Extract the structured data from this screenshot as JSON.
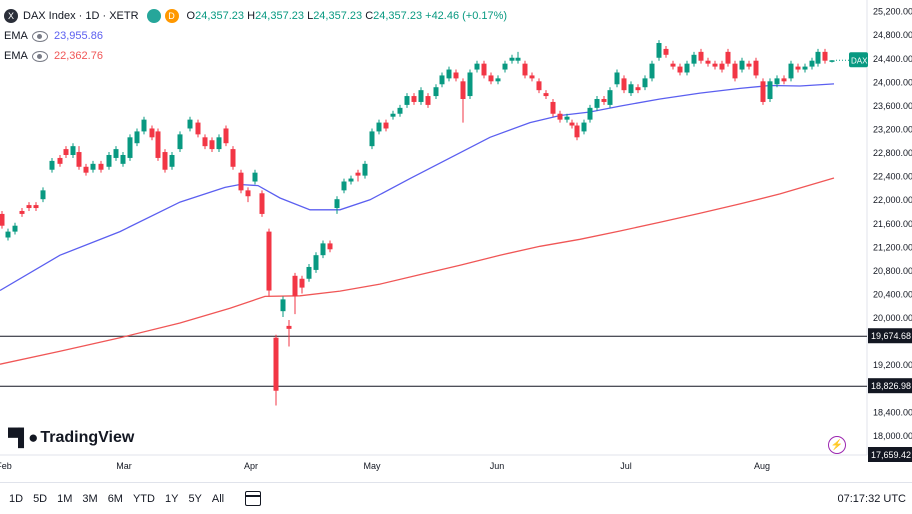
{
  "legend": {
    "symbol_icon": "X",
    "title": "DAX Index · 1D · XETR",
    "d_badge": "D",
    "ohlc": {
      "o_key": "O",
      "o": "24,357.23",
      "h_key": "H",
      "h": "24,357.23",
      "l_key": "L",
      "l": "24,357.23",
      "c_key": "C",
      "c": "24,357.23",
      "chg": "+42.46 (+0.17%)"
    },
    "ema1": {
      "label": "EMA",
      "value": "23,955.86",
      "color": "#5b5ff0"
    },
    "ema2": {
      "label": "EMA",
      "value": "22,362.76",
      "color": "#f05656"
    }
  },
  "chart_data": {
    "type": "candlestick",
    "y_ticks": [
      "25,200.00",
      "24,800.00",
      "24,400.00",
      "24,000.00",
      "23,600.00",
      "23,200.00",
      "22,800.00",
      "22,400.00",
      "22,000.00",
      "21,600.00",
      "21,200.00",
      "20,800.00",
      "20,400.00",
      "20,000.00",
      "19,200.00",
      "18,400.00",
      "18,000.00"
    ],
    "x_ticks": [
      "Feb",
      "Mar",
      "Apr",
      "May",
      "Jun",
      "Jul",
      "Aug"
    ],
    "ylim": [
      17659.42,
      25380
    ],
    "up_color": "#089981",
    "down_color": "#f23645",
    "price_tag": {
      "label": "DAX",
      "value": 24357.23,
      "color": "#089981"
    },
    "hlines": [
      {
        "value": 19674.68,
        "label": "19,674.68"
      },
      {
        "value": 18826.98,
        "label": "18,826.98"
      }
    ],
    "bottom_tag": {
      "value": 17659.42,
      "label": "17,659.42"
    },
    "ema_fast": {
      "color": "#5b5ff0",
      "points": [
        [
          0,
          20450
        ],
        [
          60,
          21050
        ],
        [
          120,
          21450
        ],
        [
          180,
          21950
        ],
        [
          225,
          22200
        ],
        [
          240,
          22250
        ],
        [
          258,
          22230
        ],
        [
          280,
          22020
        ],
        [
          310,
          21820
        ],
        [
          340,
          21820
        ],
        [
          370,
          21990
        ],
        [
          410,
          22350
        ],
        [
          450,
          22700
        ],
        [
          490,
          23050
        ],
        [
          530,
          23300
        ],
        [
          560,
          23420
        ],
        [
          590,
          23480
        ],
        [
          620,
          23580
        ],
        [
          660,
          23700
        ],
        [
          700,
          23800
        ],
        [
          740,
          23880
        ],
        [
          770,
          23930
        ],
        [
          800,
          23920
        ],
        [
          834,
          23956
        ]
      ]
    },
    "ema_slow": {
      "color": "#f05656",
      "points": [
        [
          0,
          19200
        ],
        [
          60,
          19420
        ],
        [
          120,
          19650
        ],
        [
          180,
          19900
        ],
        [
          230,
          20150
        ],
        [
          265,
          20350
        ],
        [
          300,
          20360
        ],
        [
          340,
          20440
        ],
        [
          380,
          20560
        ],
        [
          420,
          20720
        ],
        [
          460,
          20880
        ],
        [
          500,
          21050
        ],
        [
          540,
          21200
        ],
        [
          580,
          21320
        ],
        [
          620,
          21460
        ],
        [
          660,
          21610
        ],
        [
          700,
          21760
        ],
        [
          740,
          21920
        ],
        [
          780,
          22090
        ],
        [
          834,
          22360
        ]
      ]
    },
    "candles": [
      [
        2,
        21750,
        21550,
        21800,
        21500
      ],
      [
        8,
        21350,
        21450,
        21500,
        21300
      ],
      [
        15,
        21450,
        21550,
        21600,
        21400
      ],
      [
        22,
        21800,
        21750,
        21850,
        21700
      ],
      [
        29,
        21900,
        21850,
        21950,
        21800
      ],
      [
        36,
        21900,
        21850,
        21950,
        21800
      ],
      [
        43,
        22000,
        22150,
        22200,
        21950
      ],
      [
        52,
        22500,
        22650,
        22700,
        22450
      ],
      [
        60,
        22700,
        22600,
        22750,
        22550
      ],
      [
        66,
        22850,
        22750,
        22900,
        22700
      ],
      [
        73,
        22750,
        22900,
        22950,
        22700
      ],
      [
        79,
        22800,
        22550,
        22900,
        22500
      ],
      [
        86,
        22550,
        22450,
        22600,
        22400
      ],
      [
        93,
        22500,
        22600,
        22650,
        22450
      ],
      [
        101,
        22600,
        22500,
        22650,
        22450
      ],
      [
        109,
        22550,
        22750,
        22800,
        22500
      ],
      [
        116,
        22700,
        22850,
        22900,
        22650
      ],
      [
        123,
        22600,
        22750,
        22800,
        22550
      ],
      [
        130,
        22700,
        23050,
        23100,
        22650
      ],
      [
        137,
        22950,
        23150,
        23200,
        22900
      ],
      [
        144,
        23150,
        23350,
        23400,
        23100
      ],
      [
        152,
        23200,
        23050,
        23250,
        23000
      ],
      [
        158,
        23150,
        22700,
        23200,
        22650
      ],
      [
        165,
        22800,
        22500,
        22850,
        22450
      ],
      [
        172,
        22550,
        22750,
        22800,
        22500
      ],
      [
        180,
        22850,
        23100,
        23150,
        22800
      ],
      [
        190,
        23200,
        23350,
        23400,
        23150
      ],
      [
        198,
        23300,
        23100,
        23350,
        23050
      ],
      [
        205,
        23050,
        22900,
        23100,
        22850
      ],
      [
        212,
        23000,
        22850,
        23050,
        22800
      ],
      [
        219,
        22850,
        23050,
        23100,
        22800
      ],
      [
        226,
        23200,
        22950,
        23250,
        22900
      ],
      [
        233,
        22850,
        22550,
        22900,
        22500
      ],
      [
        241,
        22450,
        22150,
        22500,
        22100
      ],
      [
        248,
        22150,
        22050,
        22200,
        21950
      ],
      [
        255,
        22300,
        22450,
        22500,
        22250
      ],
      [
        262,
        22100,
        21750,
        22150,
        21700
      ],
      [
        269,
        21450,
        20450,
        21500,
        20350
      ],
      [
        276,
        19650,
        18750,
        19700,
        18500
      ],
      [
        283,
        20100,
        20300,
        20350,
        20000
      ],
      [
        289,
        19850,
        19800,
        19950,
        19500
      ],
      [
        295,
        20700,
        20350,
        20750,
        20050
      ],
      [
        302,
        20650,
        20500,
        20700,
        20400
      ],
      [
        309,
        20650,
        20850,
        20900,
        20600
      ],
      [
        316,
        20800,
        21050,
        21100,
        20750
      ],
      [
        323,
        21050,
        21250,
        21300,
        21000
      ],
      [
        330,
        21250,
        21150,
        21300,
        21100
      ],
      [
        337,
        21850,
        22000,
        22050,
        21750
      ],
      [
        344,
        22150,
        22300,
        22350,
        22100
      ],
      [
        351,
        22300,
        22350,
        22400,
        22250
      ],
      [
        358,
        22450,
        22400,
        22500,
        22300
      ],
      [
        365,
        22400,
        22600,
        22650,
        22350
      ],
      [
        372,
        22900,
        23150,
        23200,
        22850
      ],
      [
        379,
        23150,
        23300,
        23350,
        23100
      ],
      [
        386,
        23300,
        23200,
        23350,
        23150
      ],
      [
        393,
        23400,
        23450,
        23500,
        23350
      ],
      [
        400,
        23450,
        23550,
        23600,
        23400
      ],
      [
        407,
        23600,
        23750,
        23800,
        23550
      ],
      [
        414,
        23750,
        23650,
        23800,
        23600
      ],
      [
        421,
        23650,
        23850,
        23900,
        23600
      ],
      [
        428,
        23750,
        23600,
        23800,
        23550
      ],
      [
        436,
        23750,
        23900,
        23950,
        23700
      ],
      [
        442,
        23950,
        24100,
        24150,
        23900
      ],
      [
        449,
        24050,
        24200,
        24250,
        24000
      ],
      [
        456,
        24150,
        24050,
        24200,
        24000
      ],
      [
        463,
        24000,
        23700,
        24050,
        23300
      ],
      [
        470,
        23750,
        24150,
        24200,
        23700
      ],
      [
        477,
        24200,
        24300,
        24350,
        24150
      ],
      [
        484,
        24300,
        24100,
        24350,
        24050
      ],
      [
        491,
        24100,
        24000,
        24150,
        23950
      ],
      [
        498,
        24000,
        24050,
        24100,
        23950
      ],
      [
        505,
        24200,
        24300,
        24350,
        24150
      ],
      [
        512,
        24350,
        24400,
        24450,
        24300
      ],
      [
        518,
        24350,
        24400,
        24500,
        24300
      ],
      [
        525,
        24300,
        24100,
        24350,
        24050
      ],
      [
        532,
        24100,
        24050,
        24150,
        24000
      ],
      [
        539,
        24000,
        23850,
        24050,
        23800
      ],
      [
        546,
        23800,
        23750,
        23850,
        23700
      ],
      [
        553,
        23650,
        23450,
        23700,
        23400
      ],
      [
        560,
        23450,
        23350,
        23500,
        23300
      ],
      [
        567,
        23350,
        23400,
        23450,
        23300
      ],
      [
        572,
        23300,
        23250,
        23350,
        23200
      ],
      [
        577,
        23250,
        23050,
        23300,
        23000
      ],
      [
        584,
        23150,
        23300,
        23350,
        23100
      ],
      [
        590,
        23350,
        23550,
        23600,
        23300
      ],
      [
        597,
        23550,
        23700,
        23750,
        23500
      ],
      [
        604,
        23700,
        23650,
        23750,
        23600
      ],
      [
        610,
        23600,
        23850,
        23900,
        23550
      ],
      [
        617,
        23950,
        24150,
        24200,
        23900
      ],
      [
        624,
        24050,
        23850,
        24100,
        23800
      ],
      [
        631,
        23800,
        23950,
        24000,
        23750
      ],
      [
        638,
        23900,
        23850,
        23950,
        23800
      ],
      [
        645,
        23900,
        24050,
        24100,
        23850
      ],
      [
        652,
        24050,
        24300,
        24350,
        24000
      ],
      [
        659,
        24400,
        24650,
        24700,
        24350
      ],
      [
        666,
        24550,
        24450,
        24600,
        24400
      ],
      [
        673,
        24300,
        24250,
        24350,
        24200
      ],
      [
        680,
        24250,
        24150,
        24300,
        24100
      ],
      [
        687,
        24150,
        24300,
        24350,
        24100
      ],
      [
        694,
        24300,
        24450,
        24500,
        24250
      ],
      [
        701,
        24500,
        24350,
        24550,
        24300
      ],
      [
        708,
        24350,
        24300,
        24400,
        24250
      ],
      [
        715,
        24300,
        24250,
        24350,
        24200
      ],
      [
        722,
        24300,
        24200,
        24350,
        24150
      ],
      [
        728,
        24500,
        24300,
        24550,
        24250
      ],
      [
        735,
        24300,
        24050,
        24350,
        24000
      ],
      [
        742,
        24200,
        24350,
        24400,
        24150
      ],
      [
        749,
        24300,
        24250,
        24350,
        24200
      ],
      [
        756,
        24350,
        24100,
        24400,
        24050
      ],
      [
        763,
        24000,
        23650,
        24050,
        23600
      ],
      [
        770,
        23700,
        24000,
        24050,
        23650
      ],
      [
        777,
        23950,
        24050,
        24100,
        23900
      ],
      [
        784,
        24050,
        24000,
        24100,
        23950
      ],
      [
        791,
        24050,
        24300,
        24350,
        24000
      ],
      [
        798,
        24250,
        24200,
        24300,
        24150
      ],
      [
        805,
        24200,
        24250,
        24300,
        24150
      ],
      [
        812,
        24250,
        24350,
        24400,
        24200
      ],
      [
        818,
        24300,
        24500,
        24550,
        24250
      ],
      [
        825,
        24500,
        24350,
        24550,
        24300
      ],
      [
        832,
        24330,
        24357,
        24360,
        24320
      ]
    ]
  },
  "bottom_bar": {
    "ranges": [
      "1D",
      "5D",
      "1M",
      "3M",
      "6M",
      "YTD",
      "1Y",
      "5Y",
      "All"
    ],
    "clock": "07:17:32 UTC"
  },
  "watermark": "TradingView"
}
